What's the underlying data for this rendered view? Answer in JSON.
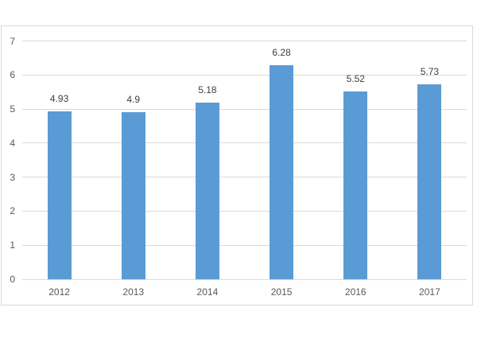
{
  "chart_data": {
    "type": "bar",
    "title": "",
    "categories": [
      "2012",
      "2013",
      "2014",
      "2015",
      "2016",
      "2017"
    ],
    "values": [
      4.93,
      4.9,
      5.18,
      6.28,
      5.52,
      5.73
    ],
    "data_labels": [
      "4.93",
      "4.9",
      "5.18",
      "6.28",
      "5.52",
      "5.73"
    ],
    "xlabel": "",
    "ylabel": "",
    "ylim": [
      0,
      7
    ],
    "yticks": [
      0,
      1,
      2,
      3,
      4,
      5,
      6,
      7
    ],
    "grid": "horizontal",
    "legend": "none",
    "colors": {
      "bar": "#5b9bd5",
      "gridline": "#d9d9d9",
      "frame_border": "#d9d9d9",
      "axis_label": "#595959",
      "data_label": "#404040",
      "background": "#ffffff"
    }
  }
}
